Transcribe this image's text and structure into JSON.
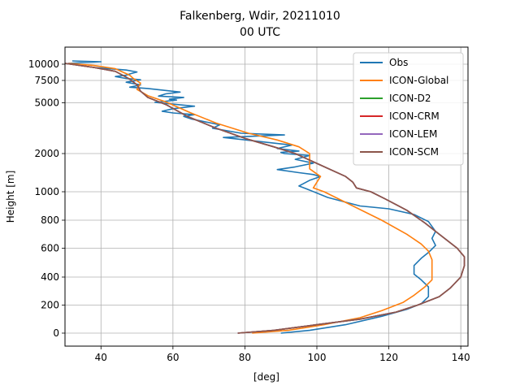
{
  "chart_data": {
    "type": "line",
    "title": "Falkenberg, Wdir, 20211010",
    "subtitle": "00 UTC",
    "xlabel": "[deg]",
    "ylabel": "Height [m]",
    "xlim": [
      30,
      142
    ],
    "x_ticks": [
      40,
      60,
      80,
      100,
      120,
      140
    ],
    "y_ticks": [
      0,
      200,
      400,
      600,
      800,
      1000,
      2000,
      5000,
      7500,
      10000
    ],
    "y_tick_labels": [
      "0",
      "200",
      "400",
      "600",
      "800",
      "1000",
      "2000",
      "5000",
      "7500",
      "10000"
    ],
    "grid": true,
    "legend_position": "top-right",
    "series": [
      {
        "name": "Obs",
        "color": "#1f77b4",
        "points": [
          [
            90,
            0
          ],
          [
            98,
            20
          ],
          [
            108,
            60
          ],
          [
            118,
            120
          ],
          [
            125,
            170
          ],
          [
            129,
            210
          ],
          [
            131,
            260
          ],
          [
            131,
            330
          ],
          [
            129,
            380
          ],
          [
            127,
            420
          ],
          [
            127,
            480
          ],
          [
            129,
            530
          ],
          [
            131,
            570
          ],
          [
            133,
            620
          ],
          [
            132,
            670
          ],
          [
            133,
            720
          ],
          [
            131,
            790
          ],
          [
            127,
            840
          ],
          [
            120,
            880
          ],
          [
            112,
            900
          ],
          [
            103,
            960
          ],
          [
            97,
            1080
          ],
          [
            95,
            1150
          ],
          [
            98,
            1300
          ],
          [
            101,
            1400
          ],
          [
            99,
            1450
          ],
          [
            95,
            1500
          ],
          [
            89,
            1580
          ],
          [
            94,
            1650
          ],
          [
            99,
            1750
          ],
          [
            94,
            1850
          ],
          [
            98,
            1950
          ],
          [
            91,
            2000
          ],
          [
            90,
            2070
          ],
          [
            95,
            2150
          ],
          [
            89,
            2300
          ],
          [
            93,
            2500
          ],
          [
            74,
            2950
          ],
          [
            91,
            3100
          ],
          [
            79,
            3200
          ],
          [
            71,
            3500
          ],
          [
            73,
            3700
          ],
          [
            65,
            4050
          ],
          [
            63,
            4200
          ],
          [
            66,
            4300
          ],
          [
            60,
            4400
          ],
          [
            57,
            4500
          ],
          [
            60,
            4650
          ],
          [
            66,
            4800
          ],
          [
            55,
            5050
          ],
          [
            61,
            5300
          ],
          [
            59,
            5400
          ],
          [
            63,
            5600
          ],
          [
            56,
            5750
          ],
          [
            58,
            6000
          ],
          [
            62,
            6200
          ],
          [
            53,
            6600
          ],
          [
            48,
            6750
          ],
          [
            51,
            7000
          ],
          [
            47,
            7300
          ],
          [
            51,
            7600
          ],
          [
            47,
            7800
          ],
          [
            44,
            8100
          ],
          [
            47,
            8300
          ],
          [
            48,
            8500
          ],
          [
            50,
            8800
          ],
          [
            47,
            9100
          ],
          [
            38,
            9500
          ],
          [
            33,
            9900
          ],
          [
            31,
            10100
          ],
          [
            40,
            10300
          ],
          [
            32,
            10400
          ]
        ]
      },
      {
        "name": "ICON-Global",
        "color": "#ff7f0e",
        "points": [
          [
            82,
            0
          ],
          [
            92,
            20
          ],
          [
            102,
            60
          ],
          [
            112,
            110
          ],
          [
            118,
            160
          ],
          [
            124,
            220
          ],
          [
            127,
            270
          ],
          [
            130,
            330
          ],
          [
            132,
            380
          ],
          [
            132,
            450
          ],
          [
            132,
            520
          ],
          [
            131,
            580
          ],
          [
            129,
            630
          ],
          [
            125,
            700
          ],
          [
            118,
            800
          ],
          [
            110,
            900
          ],
          [
            102,
            1000
          ],
          [
            99,
            1100
          ],
          [
            100,
            1250
          ],
          [
            101,
            1400
          ],
          [
            98,
            1600
          ],
          [
            98,
            2000
          ],
          [
            95,
            2400
          ],
          [
            89,
            2800
          ],
          [
            81,
            3200
          ],
          [
            72,
            3800
          ],
          [
            65,
            4400
          ],
          [
            58,
            5100
          ],
          [
            53,
            5800
          ],
          [
            50,
            6500
          ],
          [
            51,
            7200
          ],
          [
            49,
            7800
          ],
          [
            48,
            8300
          ],
          [
            46,
            8800
          ],
          [
            44,
            9300
          ],
          [
            38,
            9800
          ],
          [
            31,
            10100
          ]
        ]
      },
      {
        "name": "ICON-D2",
        "color": "#2ca02c",
        "points": [
          [
            78,
            0
          ],
          [
            88,
            20
          ],
          [
            100,
            60
          ],
          [
            112,
            100
          ],
          [
            122,
            150
          ],
          [
            128,
            200
          ],
          [
            134,
            260
          ],
          [
            137,
            320
          ],
          [
            140,
            400
          ],
          [
            141,
            480
          ],
          [
            141,
            540
          ],
          [
            139,
            600
          ],
          [
            136,
            660
          ],
          [
            133,
            720
          ],
          [
            130,
            780
          ],
          [
            125,
            870
          ],
          [
            119,
            950
          ],
          [
            115,
            1000
          ],
          [
            111,
            1100
          ],
          [
            110,
            1250
          ],
          [
            108,
            1400
          ],
          [
            101,
            1700
          ],
          [
            94,
            2000
          ],
          [
            88,
            2400
          ],
          [
            80,
            2900
          ],
          [
            72,
            3500
          ],
          [
            64,
            4200
          ],
          [
            58,
            4900
          ],
          [
            53,
            5600
          ],
          [
            51,
            6300
          ],
          [
            50,
            7000
          ],
          [
            48,
            7700
          ],
          [
            46,
            8300
          ],
          [
            44,
            8900
          ],
          [
            38,
            9500
          ],
          [
            33,
            9900
          ],
          [
            30,
            10100
          ]
        ]
      },
      {
        "name": "ICON-CRM",
        "color": "#d62728",
        "points": [
          [
            78,
            0
          ],
          [
            88,
            20
          ],
          [
            100,
            60
          ],
          [
            112,
            100
          ],
          [
            122,
            150
          ],
          [
            128,
            200
          ],
          [
            134,
            260
          ],
          [
            137,
            320
          ],
          [
            140,
            400
          ],
          [
            141,
            480
          ],
          [
            141,
            540
          ],
          [
            139,
            600
          ],
          [
            136,
            660
          ],
          [
            133,
            720
          ],
          [
            130,
            780
          ],
          [
            125,
            870
          ],
          [
            119,
            950
          ],
          [
            115,
            1000
          ],
          [
            111,
            1100
          ],
          [
            110,
            1250
          ],
          [
            108,
            1400
          ],
          [
            101,
            1700
          ],
          [
            94,
            2000
          ],
          [
            88,
            2400
          ],
          [
            80,
            2900
          ],
          [
            72,
            3500
          ],
          [
            64,
            4200
          ],
          [
            58,
            4900
          ],
          [
            53,
            5600
          ],
          [
            51,
            6300
          ],
          [
            50,
            7000
          ],
          [
            48,
            7700
          ],
          [
            46,
            8300
          ],
          [
            44,
            8900
          ],
          [
            38,
            9500
          ],
          [
            33,
            9900
          ],
          [
            30,
            10100
          ]
        ]
      },
      {
        "name": "ICON-LEM",
        "color": "#9467bd",
        "points": [
          [
            78,
            0
          ],
          [
            88,
            20
          ],
          [
            100,
            60
          ],
          [
            112,
            100
          ],
          [
            122,
            150
          ],
          [
            128,
            200
          ],
          [
            134,
            260
          ],
          [
            137,
            320
          ],
          [
            140,
            400
          ],
          [
            141,
            480
          ],
          [
            141,
            540
          ],
          [
            139,
            600
          ],
          [
            136,
            660
          ],
          [
            133,
            720
          ],
          [
            130,
            780
          ],
          [
            125,
            870
          ],
          [
            119,
            950
          ],
          [
            115,
            1000
          ],
          [
            111,
            1100
          ],
          [
            110,
            1250
          ],
          [
            108,
            1400
          ],
          [
            101,
            1700
          ],
          [
            94,
            2000
          ],
          [
            88,
            2400
          ],
          [
            80,
            2900
          ],
          [
            72,
            3500
          ],
          [
            64,
            4200
          ],
          [
            58,
            4900
          ],
          [
            53,
            5600
          ],
          [
            51,
            6300
          ],
          [
            50,
            7000
          ],
          [
            48,
            7700
          ],
          [
            46,
            8300
          ],
          [
            44,
            8900
          ],
          [
            38,
            9500
          ],
          [
            33,
            9900
          ],
          [
            30,
            10100
          ]
        ]
      },
      {
        "name": "ICON-SCM",
        "color": "#8c564b",
        "points": [
          [
            78,
            0
          ],
          [
            88,
            20
          ],
          [
            100,
            60
          ],
          [
            112,
            100
          ],
          [
            122,
            150
          ],
          [
            128,
            200
          ],
          [
            134,
            260
          ],
          [
            137,
            320
          ],
          [
            140,
            400
          ],
          [
            141,
            480
          ],
          [
            141,
            540
          ],
          [
            139,
            600
          ],
          [
            136,
            660
          ],
          [
            133,
            720
          ],
          [
            130,
            780
          ],
          [
            125,
            870
          ],
          [
            119,
            950
          ],
          [
            115,
            1000
          ],
          [
            111,
            1100
          ],
          [
            110,
            1250
          ],
          [
            108,
            1400
          ],
          [
            101,
            1700
          ],
          [
            94,
            2000
          ],
          [
            88,
            2400
          ],
          [
            80,
            2900
          ],
          [
            72,
            3500
          ],
          [
            64,
            4200
          ],
          [
            58,
            4900
          ],
          [
            53,
            5600
          ],
          [
            51,
            6300
          ],
          [
            50,
            7000
          ],
          [
            48,
            7700
          ],
          [
            46,
            8300
          ],
          [
            44,
            8900
          ],
          [
            38,
            9500
          ],
          [
            33,
            9900
          ],
          [
            30,
            10100
          ]
        ]
      }
    ]
  }
}
